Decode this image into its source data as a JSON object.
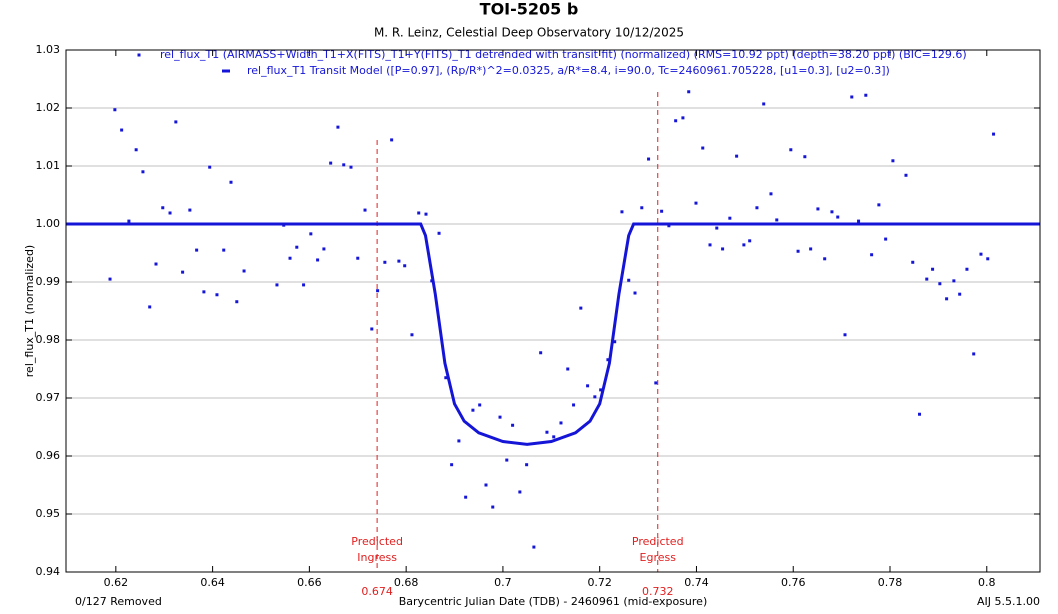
{
  "chart_data": {
    "type": "scatter",
    "title": "TOI-5205 b",
    "subtitle": "M. R. Leinz, Celestial Deep Observatory 10/12/2025",
    "x_label": "Barycentric Julian Date (TDB) - 2460961 (mid-exposure)",
    "y_label": "rel_flux_T1 (normalized)",
    "footer_left": "0/127 Removed",
    "footer_right": "AIJ 5.5.1.00",
    "xlim": [
      0.6097,
      0.811
    ],
    "ylim": [
      0.94,
      1.03
    ],
    "xticks": [
      0.62,
      0.64,
      0.66,
      0.68,
      0.7,
      0.72,
      0.74,
      0.76,
      0.78,
      0.8
    ],
    "yticks": [
      0.94,
      0.95,
      0.96,
      0.97,
      0.98,
      0.99,
      {
        "value": 1,
        "label": "1.00"
      },
      1.01,
      1.02,
      1.03
    ],
    "grid": true,
    "predicted": [
      {
        "x": 0.674,
        "label_lines": [
          "Predicted",
          "Ingress"
        ],
        "color": "#e02020"
      },
      {
        "x": 0.732,
        "label_lines": [
          "Predicted",
          "Egress"
        ],
        "color": "#e02020"
      }
    ],
    "series": [
      {
        "name": "rel_flux_T1 (AIRMASS+Width_T1+X(FITS)_T1+Y(FITS)_T1 detrended with transit fit) (normalized) (RMS=10.92 ppt) (depth=38.20 ppt) (BIC=129.6)",
        "style": "points",
        "color": "#1515d8",
        "x": [
          0.6188,
          0.6198,
          0.6212,
          0.6227,
          0.6242,
          0.6256,
          0.627,
          0.6283,
          0.6297,
          0.6312,
          0.6324,
          0.6338,
          0.6353,
          0.6367,
          0.6382,
          0.6394,
          0.6409,
          0.6423,
          0.6438,
          0.645,
          0.6465,
          0.6533,
          0.6547,
          0.656,
          0.6574,
          0.6588,
          0.6603,
          0.6617,
          0.663,
          0.6644,
          0.6659,
          0.6671,
          0.6686,
          0.67,
          0.6715,
          0.6729,
          0.6741,
          0.6756,
          0.677,
          0.6785,
          0.6797,
          0.6812,
          0.6826,
          0.6841,
          0.6853,
          0.6868,
          0.6882,
          0.6894,
          0.6909,
          0.6923,
          0.6938,
          0.6952,
          0.6965,
          0.6979,
          0.6994,
          0.7008,
          0.702,
          0.7035,
          0.7049,
          0.7064,
          0.7078,
          0.7091,
          0.7105,
          0.712,
          0.7134,
          0.7146,
          0.7161,
          0.7175,
          0.719,
          0.7202,
          0.7217,
          0.7231,
          0.7246,
          0.726,
          0.7273,
          0.7287,
          0.7301,
          0.7316,
          0.7328,
          0.7343,
          0.7357,
          0.7372,
          0.7384,
          0.7399,
          0.7413,
          0.7428,
          0.7442,
          0.7454,
          0.7469,
          0.7483,
          0.7498,
          0.751,
          0.7525,
          0.7539,
          0.7554,
          0.7566,
          0.7595,
          0.761,
          0.7624,
          0.7636,
          0.7651,
          0.7665,
          0.768,
          0.7692,
          0.7707,
          0.7721,
          0.7735,
          0.775,
          0.7762,
          0.7777,
          0.7791,
          0.7806,
          0.7833,
          0.7847,
          0.7861,
          0.7876,
          0.7888,
          0.7903,
          0.7917,
          0.7932,
          0.7944,
          0.7959,
          0.7973,
          0.7988,
          0.8002,
          0.8014
        ],
        "values": [
          0.9905,
          1.0197,
          1.0162,
          1.0005,
          1.0128,
          1.009,
          0.9857,
          0.9931,
          1.0028,
          1.0019,
          1.0176,
          0.9917,
          1.0024,
          0.9955,
          0.9883,
          1.0098,
          0.9878,
          0.9955,
          1.0072,
          0.9866,
          0.9919,
          0.9895,
          0.9998,
          0.9941,
          0.996,
          0.9895,
          0.9983,
          0.9938,
          0.9957,
          1.0105,
          1.0167,
          1.0102,
          1.0098,
          0.9941,
          1.0024,
          0.9819,
          0.9885,
          0.9934,
          1.0145,
          0.9936,
          0.9928,
          0.9809,
          1.0019,
          1.0017,
          0.9902,
          0.9984,
          0.9735,
          0.9585,
          0.9626,
          0.9529,
          0.9679,
          0.9688,
          0.955,
          0.9512,
          0.9667,
          0.9593,
          0.9653,
          0.9538,
          0.9585,
          0.9443,
          0.9778,
          0.9641,
          0.9633,
          0.9657,
          0.975,
          0.9688,
          0.9855,
          0.9721,
          0.9702,
          0.9714,
          0.9766,
          0.9797,
          1.0021,
          0.9903,
          0.9881,
          1.0028,
          1.0112,
          0.9726,
          1.0022,
          0.9997,
          1.0178,
          1.0183,
          1.0228,
          1.0036,
          1.0131,
          0.9964,
          0.9993,
          0.9957,
          1.001,
          1.0117,
          0.9964,
          0.9971,
          1.0028,
          1.0207,
          1.0052,
          1.0007,
          1.0128,
          0.9953,
          1.0116,
          0.9957,
          1.0026,
          0.994,
          1.0021,
          1.0012,
          0.9809,
          1.0219,
          1.0005,
          1.0222,
          0.9947,
          1.0033,
          0.9974,
          1.0109,
          1.0084,
          0.9934,
          0.9672,
          0.9905,
          0.9922,
          0.9897,
          0.9871,
          0.9902,
          0.9879,
          0.9922,
          0.9776,
          0.9948,
          0.994,
          1.0155
        ]
      },
      {
        "name": "rel_flux_T1 Transit Model ([P=0.97], (Rp/R*)^2=0.0325, a/R*=8.4, i=90.0, Tc=2460961.705228, [u1=0.3], [u2=0.3])",
        "style": "line",
        "color": "#1515d8",
        "x": [
          0.6097,
          0.683,
          0.684,
          0.686,
          0.688,
          0.69,
          0.692,
          0.695,
          0.7,
          0.705,
          0.71,
          0.715,
          0.718,
          0.72,
          0.722,
          0.724,
          0.726,
          0.727,
          0.811
        ],
        "values": [
          1,
          1,
          0.998,
          0.988,
          0.976,
          0.969,
          0.966,
          0.964,
          0.9625,
          0.962,
          0.9625,
          0.964,
          0.966,
          0.969,
          0.976,
          0.988,
          0.998,
          1,
          1
        ]
      }
    ]
  }
}
